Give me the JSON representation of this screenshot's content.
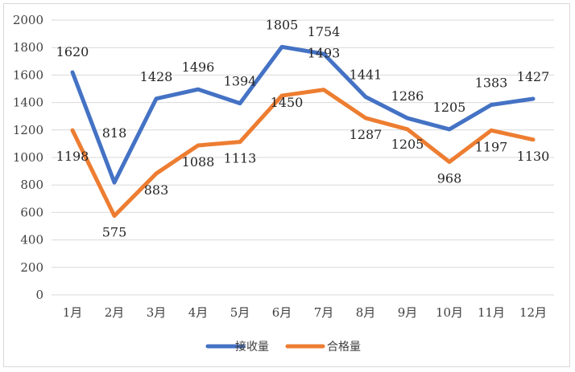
{
  "chart_data": {
    "type": "line",
    "title": "",
    "xlabel": "",
    "ylabel": "",
    "categories": [
      "1月",
      "2月",
      "3月",
      "4月",
      "5月",
      "6月",
      "7月",
      "8月",
      "9月",
      "10月",
      "11月",
      "12月"
    ],
    "ylim": [
      0,
      2000
    ],
    "yticks": [
      0,
      200,
      400,
      600,
      800,
      1000,
      1200,
      1400,
      1600,
      1800,
      2000
    ],
    "grid": true,
    "legend_position": "bottom",
    "series": [
      {
        "name": "接收量",
        "color": "#4472c4",
        "values": [
          1620,
          818,
          1428,
          1496,
          1394,
          1805,
          1754,
          1441,
          1286,
          1205,
          1383,
          1427
        ],
        "labels": [
          "1620",
          "818",
          "1428",
          "1496",
          "1394",
          "1805",
          "1754",
          "1441",
          "1286",
          "1205",
          "1383",
          "1427"
        ]
      },
      {
        "name": "合格量",
        "color": "#ed7d31",
        "values": [
          1198,
          575,
          883,
          1088,
          1113,
          1450,
          1493,
          1287,
          1205,
          968,
          1197,
          1130
        ],
        "labels": [
          "1198",
          "575",
          "883",
          "1088",
          "1113",
          "1450",
          "1493",
          "1287",
          "1205",
          "968",
          "1197",
          "1130"
        ]
      }
    ]
  }
}
